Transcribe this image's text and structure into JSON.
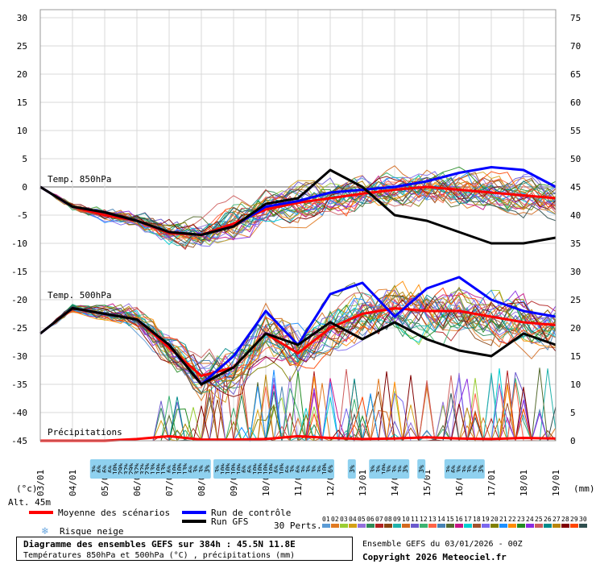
{
  "chart_data": {
    "type": "line",
    "title": "Diagramme des ensembles GEFS sur 384h : 45.5N 11.8E",
    "subtitle": "Températures 850hPa et 500hPa (°C) , précipitations (mm)",
    "run_info": "Ensemble GEFS du 03/01/2026 - 00Z",
    "copyright": "Copyright 2026 Meteociel.fr",
    "left_axis_unit": "(°c)",
    "right_axis_unit": "(mm)",
    "altitude": "Alt. 45m",
    "left_ticks": [
      "30",
      "25",
      "20",
      "15",
      "10",
      "5",
      "0",
      "-5",
      "-10",
      "-15",
      "-20",
      "-25",
      "-30",
      "-35",
      "-40",
      "-45"
    ],
    "right_ticks": [
      "75",
      "70",
      "65",
      "60",
      "55",
      "50",
      "45",
      "40",
      "35",
      "30",
      "25",
      "20",
      "15",
      "10",
      "5",
      "0"
    ],
    "x_dates": [
      "03/01",
      "04/01",
      "05/01",
      "06/01",
      "07/01",
      "08/01",
      "09/01",
      "10/01",
      "11/01",
      "12/01",
      "13/01",
      "14/01",
      "15/01",
      "16/01",
      "17/01",
      "18/01",
      "19/01"
    ],
    "section_labels": {
      "t850": "Temp. 850hPa",
      "t500": "Temp. 500hPa",
      "precip": "Précipitations"
    },
    "legend": {
      "mean": "Moyenne des scénarios",
      "control": "Run de contrôle",
      "gfs": "Run GFS",
      "snow": "Risque neige",
      "perts_label": "30 Perts.",
      "member_numbers": [
        "01",
        "02",
        "03",
        "04",
        "05",
        "06",
        "07",
        "08",
        "09",
        "10",
        "11",
        "12",
        "13",
        "14",
        "15",
        "16",
        "17",
        "18",
        "19",
        "20",
        "21",
        "22",
        "23",
        "24",
        "25",
        "26",
        "27",
        "28",
        "29",
        "30"
      ],
      "member_colors": [
        "#5b9bd5",
        "#e07a22",
        "#9acd32",
        "#d4a017",
        "#9370db",
        "#2e8b57",
        "#b22222",
        "#8b4513",
        "#20b2aa",
        "#d2691e",
        "#6a5acd",
        "#3cb371",
        "#ff6347",
        "#4682b4",
        "#556b2f",
        "#c71585",
        "#00ced1",
        "#a0522d",
        "#7b68ee",
        "#808000",
        "#1e90ff",
        "#ff8c00",
        "#228b22",
        "#8a2be2",
        "#cd5c5c",
        "#008b8b",
        "#b8860b",
        "#800000",
        "#ff4500",
        "#2f4f4f"
      ]
    },
    "snow_risk": [
      {
        "x": 1.67,
        "label": "3%"
      },
      {
        "x": 1.83,
        "label": "6%"
      },
      {
        "x": 2.0,
        "label": "6%"
      },
      {
        "x": 2.17,
        "label": "6%"
      },
      {
        "x": 2.33,
        "label": "10%"
      },
      {
        "x": 2.5,
        "label": "29%"
      },
      {
        "x": 2.67,
        "label": "32%"
      },
      {
        "x": 2.83,
        "label": "29%"
      },
      {
        "x": 3.0,
        "label": "32%"
      },
      {
        "x": 3.17,
        "label": "32%"
      },
      {
        "x": 3.33,
        "label": "23%"
      },
      {
        "x": 3.5,
        "label": "13%"
      },
      {
        "x": 3.67,
        "label": "10%"
      },
      {
        "x": 3.83,
        "label": "13%"
      },
      {
        "x": 4.0,
        "label": "6%"
      },
      {
        "x": 4.17,
        "label": "10%"
      },
      {
        "x": 4.33,
        "label": "10%"
      },
      {
        "x": 4.5,
        "label": "13%"
      },
      {
        "x": 4.67,
        "label": "6%"
      },
      {
        "x": 4.83,
        "label": "3%"
      },
      {
        "x": 5.0,
        "label": "3%"
      },
      {
        "x": 5.17,
        "label": "3%"
      },
      {
        "x": 5.5,
        "label": "3%"
      },
      {
        "x": 5.67,
        "label": "10%"
      },
      {
        "x": 5.83,
        "label": "10%"
      },
      {
        "x": 6.0,
        "label": "10%"
      },
      {
        "x": 6.17,
        "label": "10%"
      },
      {
        "x": 6.33,
        "label": "6%"
      },
      {
        "x": 6.5,
        "label": "6%"
      },
      {
        "x": 6.67,
        "label": "10%"
      },
      {
        "x": 6.83,
        "label": "10%"
      },
      {
        "x": 7.0,
        "label": "10%"
      },
      {
        "x": 7.17,
        "label": "10%"
      },
      {
        "x": 7.33,
        "label": "6%"
      },
      {
        "x": 7.5,
        "label": "10%"
      },
      {
        "x": 7.67,
        "label": "6%"
      },
      {
        "x": 7.83,
        "label": "3%"
      },
      {
        "x": 8.0,
        "label": "6%"
      },
      {
        "x": 8.17,
        "label": "3%"
      },
      {
        "x": 8.33,
        "label": "3%"
      },
      {
        "x": 8.5,
        "label": "3%"
      },
      {
        "x": 8.67,
        "label": "3%"
      },
      {
        "x": 8.83,
        "label": "10%"
      },
      {
        "x": 9.0,
        "label": "6%"
      },
      {
        "x": 9.67,
        "label": "3%"
      },
      {
        "x": 10.33,
        "label": "3%"
      },
      {
        "x": 10.5,
        "label": "3%"
      },
      {
        "x": 10.67,
        "label": "10%"
      },
      {
        "x": 10.83,
        "label": "3%"
      },
      {
        "x": 11.0,
        "label": "3%"
      },
      {
        "x": 11.17,
        "label": "3%"
      },
      {
        "x": 11.33,
        "label": "3%"
      },
      {
        "x": 11.83,
        "label": "3%"
      },
      {
        "x": 12.67,
        "label": "3%"
      },
      {
        "x": 12.83,
        "label": "6%"
      },
      {
        "x": 13.0,
        "label": "3%"
      },
      {
        "x": 13.17,
        "label": "3%"
      },
      {
        "x": 13.33,
        "label": "3%"
      },
      {
        "x": 13.5,
        "label": "3%"
      },
      {
        "x": 13.67,
        "label": "3%"
      }
    ],
    "series": [
      {
        "name": "Moyenne des scénarios",
        "level": "850",
        "color": "#ff0000",
        "values": [
          0,
          -3.5,
          -5,
          -6,
          -8.2,
          -8.5,
          -6.5,
          -4,
          -2.8,
          -2,
          -1.2,
          -0.5,
          0,
          -0.5,
          -1,
          -1.5,
          -2
        ]
      },
      {
        "name": "Run de contrôle",
        "level": "850",
        "color": "#0000ff",
        "values": [
          0,
          -3.5,
          -4.5,
          -6,
          -8,
          -8.5,
          -7,
          -3.5,
          -2.5,
          -1,
          -0.5,
          0,
          1,
          2.5,
          3.5,
          3,
          0
        ]
      },
      {
        "name": "Run GFS",
        "level": "850",
        "color": "#000000",
        "values": [
          0,
          -3.5,
          -4.5,
          -6,
          -8,
          -8.5,
          -7,
          -3,
          -2,
          3,
          0,
          -5,
          -6,
          -8,
          -10,
          -10,
          -9
        ]
      },
      {
        "name": "Moyenne des scénarios",
        "level": "500",
        "color": "#ff0000",
        "values": [
          -26,
          -21.5,
          -22.5,
          -23.5,
          -28.5,
          -33.5,
          -32,
          -26,
          -29.5,
          -25,
          -22.5,
          -21.5,
          -22,
          -22,
          -23,
          -24,
          -24.5
        ]
      },
      {
        "name": "Run de contrôle",
        "level": "500",
        "color": "#0000ff",
        "values": [
          -26,
          -21.5,
          -22.5,
          -23.5,
          -28,
          -35,
          -30,
          -22,
          -28,
          -19,
          -17,
          -23,
          -18,
          -16,
          -20,
          -22,
          -23
        ]
      },
      {
        "name": "Run GFS",
        "level": "500",
        "color": "#000000",
        "values": [
          -26,
          -21.5,
          -22.5,
          -23.5,
          -28,
          -35,
          -32,
          -26,
          -28,
          -24,
          -27,
          -24,
          -27,
          -29,
          -30,
          -26,
          -28
        ]
      },
      {
        "name": "Moyenne des scénarios",
        "level": "precip",
        "color": "#ff0000",
        "values": [
          0,
          0,
          0,
          0.3,
          0.8,
          0.2,
          0.2,
          0.3,
          0.8,
          0.5,
          0.3,
          0.4,
          0.6,
          0.4,
          0.3,
          0.5,
          0.4
        ]
      }
    ],
    "ylim_left": [
      -45,
      30
    ],
    "ylim_right": [
      0,
      75
    ]
  }
}
